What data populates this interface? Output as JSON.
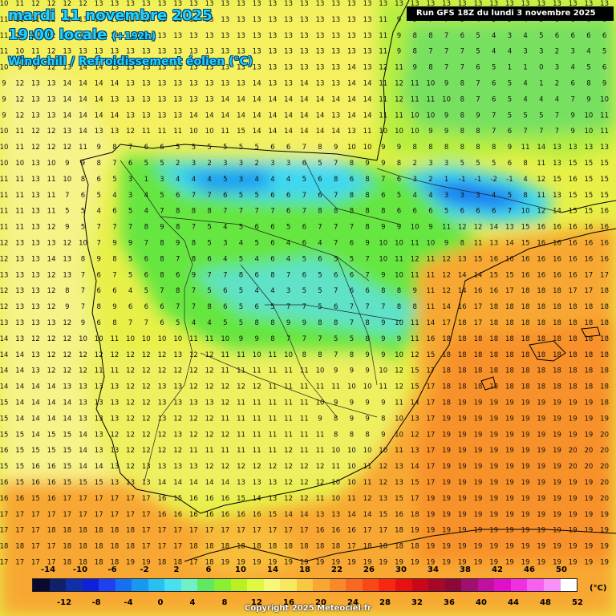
{
  "header": {
    "date": "mardi 11 novembre 2025",
    "time": "19:00 locale",
    "lead": "(+192h)",
    "variable": "Windchill / Refroidissement éolien (°C)"
  },
  "run": {
    "label": "Run GFS 18Z du lundi 3 novembre 2025"
  },
  "legend": {
    "unit": "(°C)",
    "colors": [
      "#0a0a30",
      "#10206a",
      "#1030a8",
      "#1020d8",
      "#2040f0",
      "#1870f0",
      "#1898f0",
      "#28c0f0",
      "#48e0f0",
      "#70f0c8",
      "#60e860",
      "#88f030",
      "#b8f020",
      "#e0f840",
      "#f8f878",
      "#f8e860",
      "#f8c840",
      "#f8a830",
      "#f88828",
      "#f86820",
      "#f84818",
      "#f82810",
      "#e81010",
      "#c80818",
      "#a80828",
      "#8c0838",
      "#a01070",
      "#c010a0",
      "#e010c8",
      "#f030e0",
      "#f860f0",
      "#f890f8",
      "#ffffff"
    ],
    "top_ticks": [
      "-14",
      "-10",
      "-6",
      "-2",
      "2",
      "6",
      "10",
      "14",
      "18",
      "22",
      "26",
      "30",
      "34",
      "38",
      "42",
      "46",
      "50"
    ],
    "bottom_ticks": [
      "-12",
      "-8",
      "-4",
      "0",
      "4",
      "8",
      "12",
      "16",
      "20",
      "24",
      "28",
      "32",
      "36",
      "40",
      "44",
      "48",
      "52"
    ]
  },
  "copyright": "Copyright 2025 Meteociel.fr",
  "map": {
    "grid_rows": [
      "10 11 12 12 12 12 13 13 13 13 13 13 13 13 13 13 13 13 13 13 13 13 13 13 13 13 13 13 13 13 13 13 13 13 13 13 13 13 13",
      "11 11 11 12 12 13 13 13 13 13 13 13 13 13 13 13 13 13 13 13 13 13 13 13 11 9 9 7 7 5 4 5 5 4 5 6 6 6 6",
      "11 11 11 12 12 13 13 13 13 13 13 13 13 13 13 13 13 13 13 13 13 13 13 13 11 9 8 8 7 6 5 4 3 4 5 6 6 6 6",
      "11 10 11 12 13 13 13 13 13 13 13 13 13 13 13 13 13 13 13 13 13 13 13 13 11 9 8 7 7 7 5 4 4 3 3 2 3 4 5",
      "10 9 9 12 13 14 14 13 13 13 13 13 13 13 13 13 13 13 13 13 13 13 14 13 12 11 9 8 7 7 6 5 1 1 0 3 4 5 6",
      "9 12 13 13 14 14 14 14 13 13 13 13 13 13 13 13 14 13 13 14 13 13 14 14 11 12 11 10 9 8 7 6 5 4 1 2 6 8 9",
      "9 12 13 13 14 14 14 13 13 13 13 13 13 13 14 14 14 14 14 14 14 14 14 14 11 12 11 11 10 8 7 6 5 4 4 4 7 9 10",
      "9 12 13 13 14 14 14 14 13 13 13 13 14 14 14 14 14 14 14 14 14 13 14 14 11 11 10 10 9 8 9 7 5 5 5 7 9 10 11",
      "10 11 12 12 13 14 13 13 12 11 11 11 10 10 11 15 14 14 14 14 14 14 13 11 10 10 10 9 9 8 8 7 6 7 7 7 9 10 11",
      "10 11 12 12 12 11 9 8 7 6 6 5 5 5 5 5 5 6 6 7 8 9 10 10 9 9 8 8 8 8 8 8 9 11 14 13 13 13 13",
      "10 10 13 10 9 9 8 7 6 5 5 2 3 2 3 3 2 3 3 6 5 7 8 9 9 8 2 3 3 5 5 5 6 8 11 13 15 15 15",
      "11 11 13 11 10 8 6 5 3 1 3 4 4 4 5 3 4 4 4 5 6 8 6 8 7 6 3 2 1 -1 -1 -2 -1 4 12 15 16 15 15",
      "11 11 13 11 7 6 5 4 3 4 5 6 7 7 6 5 5 6 6 7 6 7 8 8 6 5 4 4 3 3 3 4 5 8 11 13 15 15 15",
      "11 11 13 11 5 5 4 6 5 4 7 8 8 8 7 7 7 7 6 7 8 8 8 8 8 6 6 6 5 6 6 6 7 10 12 14 15 15 16",
      "11 11 13 12 9 5 7 7 7 8 9 8 7 5 4 5 6 6 5 6 7 7 7 8 9 9 10 9 11 12 12 14 13 15 16 16 16 16 16",
      "12 13 13 13 12 10 7 9 9 7 8 9 8 5 3 4 5 6 4 6 4 7 6 9 10 10 11 10 9 8 11 13 14 15 16 16 16 16 16",
      "12 13 13 14 13 8 9 8 5 6 8 7 8 6 4 5 4 6 4 5 6 5 5 7 10 11 12 11 12 13 15 16 16 16 16 16 16 16 16",
      "13 13 13 12 13 7 6 7 5 6 8 6 9 7 7 8 6 8 7 6 5 6 6 7 9 10 11 11 12 14 14 15 15 16 16 16 16 17 17",
      "12 13 13 12 8 7 6 6 4 5 7 8 7 5 6 5 4 4 3 5 5 7 6 6 8 8 9 11 12 14 16 16 17 18 18 18 17 17 18",
      "12 13 13 12 9 7 8 9 6 6 6 7 7 8 6 5 6 5 7 7 5 6 7 7 7 8 8 11 14 16 17 18 18 18 18 18 18 18 18",
      "13 13 13 13 12 9 6 8 7 7 6 5 4 4 5 5 8 8 9 9 8 8 7 8 9 10 11 14 17 18 17 18 18 18 18 18 18 18 18",
      "14 13 12 12 12 10 10 11 10 10 10 10 11 11 10 9 9 8 7 7 7 5 5 8 9 9 11 16 18 18 18 18 18 18 18 18 18 18 18",
      "14 14 13 12 12 12 12 12 12 12 12 13 12 12 11 11 10 11 10 8 8 7 8 9 9 10 12 15 18 18 18 18 18 18 18 18 18 18 18",
      "14 14 13 12 12 12 11 11 12 12 12 12 12 12 11 11 11 11 11 11 10 9 9 9 10 12 15 17 18 18 18 18 18 18 18 18 18 18 18",
      "14 14 14 14 13 13 13 13 12 12 13 13 12 12 12 12 12 11 11 11 11 11 10 10 11 12 15 17 18 18 18 18 18 18 18 18 18 18 18",
      "15 14 14 14 14 13 13 13 12 12 13 13 13 13 12 11 11 11 11 11 10 9 9 9 9 11 14 17 18 19 19 19 19 19 19 19 19 19 18",
      "15 14 14 14 14 13 13 13 12 12 13 12 12 12 11 11 11 11 11 11 9 8 9 9 8 10 13 17 19 19 19 19 19 19 19 19 19 19 19",
      "15 15 14 15 15 14 13 12 12 12 12 13 12 12 12 11 11 11 11 11 11 8 8 8 9 10 12 17 19 19 19 19 19 19 19 19 19 19 20",
      "16 15 15 15 15 14 13 13 12 12 12 12 11 11 11 11 11 11 12 11 11 10 10 10 10 11 13 17 19 19 19 19 19 19 19 19 20 20 20",
      "15 15 16 16 15 14 14 13 12 13 13 13 13 12 12 12 12 12 12 12 12 11 10 11 12 13 14 17 19 19 19 19 19 19 19 19 20 20 20",
      "16 15 16 16 15 15 15 13 13 13 14 14 14 14 14 13 13 13 12 12 12 10 10 11 12 13 15 17 19 19 19 19 19 19 19 19 19 19 20",
      "16 16 15 16 17 17 17 17 17 17 16 15 16 16 16 15 14 13 12 12 11 10 11 12 13 15 17 19 19 19 19 19 19 19 19 19 19 19 20",
      "17 17 17 17 17 17 17 17 17 17 16 16 16 16 16 16 16 15 14 14 13 13 14 14 15 16 18 19 19 19 19 19 19 19 19 19 19 19 19",
      "17 17 17 18 18 18 18 18 18 17 17 17 17 17 17 17 17 17 17 17 16 16 16 17 17 18 19 19 19 19 19 19 19 19 19 19 19 19 19",
      "18 18 17 17 18 18 18 18 18 17 17 17 18 18 18 18 18 18 18 18 18 18 17 18 18 18 18 19 19 19 19 19 19 19 19 19 19 19 19",
      "17 17 17 17 18 18 18 18 19 19 18 18 17 18 19 19 19 19 19 19 19 19 19 19 19 19 19 19 19 19 19 19 19 19 19 19 19 19 19"
    ]
  }
}
